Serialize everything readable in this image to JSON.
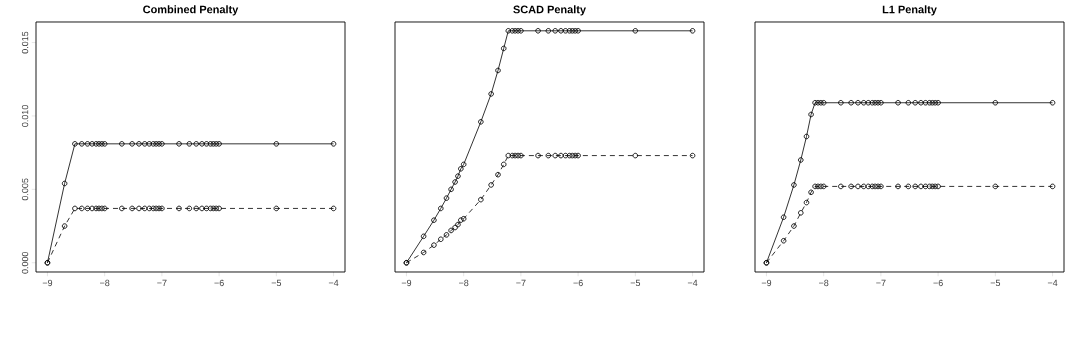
{
  "chart_data": [
    {
      "type": "line",
      "title": "Combined Penalty",
      "marker": "circle",
      "xlim": [
        -9.2,
        -3.8
      ],
      "ylim": [
        -0.00063,
        0.0164
      ],
      "xticks": [
        {
          "value": -9,
          "label": "−9"
        },
        {
          "value": -8,
          "label": "−8"
        },
        {
          "value": -7,
          "label": "−7"
        },
        {
          "value": -6,
          "label": "−6"
        },
        {
          "value": -5,
          "label": "−5"
        },
        {
          "value": -4,
          "label": "−4"
        }
      ],
      "yticks": [
        {
          "value": 0,
          "label": "0.000"
        },
        {
          "value": 0.005,
          "label": "0.005"
        },
        {
          "value": 0.01,
          "label": "0.010"
        },
        {
          "value": 0.015,
          "label": "0.015"
        }
      ],
      "x": [
        -9,
        -8.7,
        -8.52,
        -8.4,
        -8.3,
        -8.22,
        -8.15,
        -8.1,
        -8.05,
        -8,
        -7.7,
        -7.52,
        -7.4,
        -7.3,
        -7.22,
        -7.15,
        -7.1,
        -7.05,
        -7,
        -6.7,
        -6.52,
        -6.4,
        -6.3,
        -6.22,
        -6.15,
        -6.1,
        -6.05,
        -6,
        -5,
        -4
      ],
      "series": [
        {
          "color": "#000000",
          "line_style": "solid",
          "values": [
            0,
            0.0054,
            0.0081,
            0.0081,
            0.0081,
            0.0081,
            0.0081,
            0.0081,
            0.0081,
            0.0081,
            0.0081,
            0.0081,
            0.0081,
            0.0081,
            0.0081,
            0.0081,
            0.0081,
            0.0081,
            0.0081,
            0.0081,
            0.0081,
            0.0081,
            0.0081,
            0.0081,
            0.0081,
            0.0081,
            0.0081,
            0.0081,
            0.0081,
            0.0081
          ]
        },
        {
          "color": "#000000",
          "line_style": "dashed",
          "values": [
            0,
            0.0025,
            0.0037,
            0.0037,
            0.0037,
            0.0037,
            0.0037,
            0.0037,
            0.0037,
            0.0037,
            0.0037,
            0.0037,
            0.0037,
            0.0037,
            0.0037,
            0.0037,
            0.0037,
            0.0037,
            0.0037,
            0.0037,
            0.0037,
            0.0037,
            0.0037,
            0.0037,
            0.0037,
            0.0037,
            0.0037,
            0.0037,
            0.0037,
            0.0037
          ]
        }
      ]
    },
    {
      "type": "line",
      "title": "SCAD Penalty",
      "marker": "circle",
      "tick_labels": "x",
      "xlim": [
        -9.2,
        -3.8
      ],
      "ylim": [
        -0.00063,
        0.0164
      ],
      "xticks": [
        {
          "value": -9,
          "label": "−9"
        },
        {
          "value": -8,
          "label": "−8"
        },
        {
          "value": -7,
          "label": "−7"
        },
        {
          "value": -6,
          "label": "−6"
        },
        {
          "value": -5,
          "label": "−5"
        },
        {
          "value": -4,
          "label": "−4"
        }
      ],
      "x": [
        -9,
        -8.7,
        -8.52,
        -8.4,
        -8.3,
        -8.22,
        -8.15,
        -8.1,
        -8.05,
        -8,
        -7.7,
        -7.52,
        -7.4,
        -7.3,
        -7.22,
        -7.15,
        -7.1,
        -7.05,
        -7,
        -6.7,
        -6.52,
        -6.4,
        -6.3,
        -6.22,
        -6.15,
        -6.1,
        -6.05,
        -6,
        -5,
        -4
      ],
      "series": [
        {
          "color": "#000000",
          "line_style": "solid",
          "values": [
            0,
            0.0018,
            0.0029,
            0.0037,
            0.0044,
            0.005,
            0.0055,
            0.0059,
            0.0064,
            0.0067,
            0.0096,
            0.0115,
            0.0131,
            0.0146,
            0.0158,
            0.0158,
            0.0158,
            0.0158,
            0.0158,
            0.0158,
            0.0158,
            0.0158,
            0.0158,
            0.0158,
            0.0158,
            0.0158,
            0.0158,
            0.0158,
            0.0158,
            0.0158
          ]
        },
        {
          "color": "#000000",
          "line_style": "dashed",
          "values": [
            0,
            0.0007,
            0.0012,
            0.0016,
            0.0019,
            0.0022,
            0.0024,
            0.0026,
            0.0029,
            0.003,
            0.0043,
            0.0053,
            0.006,
            0.0067,
            0.0073,
            0.0073,
            0.0073,
            0.0073,
            0.0073,
            0.0073,
            0.0073,
            0.0073,
            0.0073,
            0.0073,
            0.0073,
            0.0073,
            0.0073,
            0.0073,
            0.0073,
            0.0073
          ]
        }
      ]
    },
    {
      "type": "line",
      "title": "L1 Penalty",
      "marker": "circle",
      "tick_labels": "x",
      "xlim": [
        -9.2,
        -3.8
      ],
      "ylim": [
        -0.00063,
        0.0164
      ],
      "xticks": [
        {
          "value": -9,
          "label": "−9"
        },
        {
          "value": -8,
          "label": "−8"
        },
        {
          "value": -7,
          "label": "−7"
        },
        {
          "value": -6,
          "label": "−6"
        },
        {
          "value": -5,
          "label": "−5"
        },
        {
          "value": -4,
          "label": "−4"
        }
      ],
      "x": [
        -9,
        -8.7,
        -8.52,
        -8.4,
        -8.3,
        -8.22,
        -8.15,
        -8.1,
        -8.05,
        -8,
        -7.7,
        -7.52,
        -7.4,
        -7.3,
        -7.22,
        -7.15,
        -7.1,
        -7.05,
        -7,
        -6.7,
        -6.52,
        -6.4,
        -6.3,
        -6.22,
        -6.15,
        -6.1,
        -6.05,
        -6,
        -5,
        -4
      ],
      "series": [
        {
          "color": "#000000",
          "line_style": "solid",
          "values": [
            0,
            0.0031,
            0.0053,
            0.007,
            0.0086,
            0.0101,
            0.0109,
            0.0109,
            0.0109,
            0.0109,
            0.0109,
            0.0109,
            0.0109,
            0.0109,
            0.0109,
            0.0109,
            0.0109,
            0.0109,
            0.0109,
            0.0109,
            0.0109,
            0.0109,
            0.0109,
            0.0109,
            0.0109,
            0.0109,
            0.0109,
            0.0109,
            0.0109,
            0.0109
          ]
        },
        {
          "color": "#000000",
          "line_style": "dashed",
          "values": [
            0,
            0.0015,
            0.0025,
            0.0034,
            0.0041,
            0.0048,
            0.0052,
            0.0052,
            0.0052,
            0.0052,
            0.0052,
            0.0052,
            0.0052,
            0.0052,
            0.0052,
            0.0052,
            0.0052,
            0.0052,
            0.0052,
            0.0052,
            0.0052,
            0.0052,
            0.0052,
            0.0052,
            0.0052,
            0.0052,
            0.0052,
            0.0052,
            0.0052,
            0.0052
          ]
        }
      ]
    }
  ]
}
